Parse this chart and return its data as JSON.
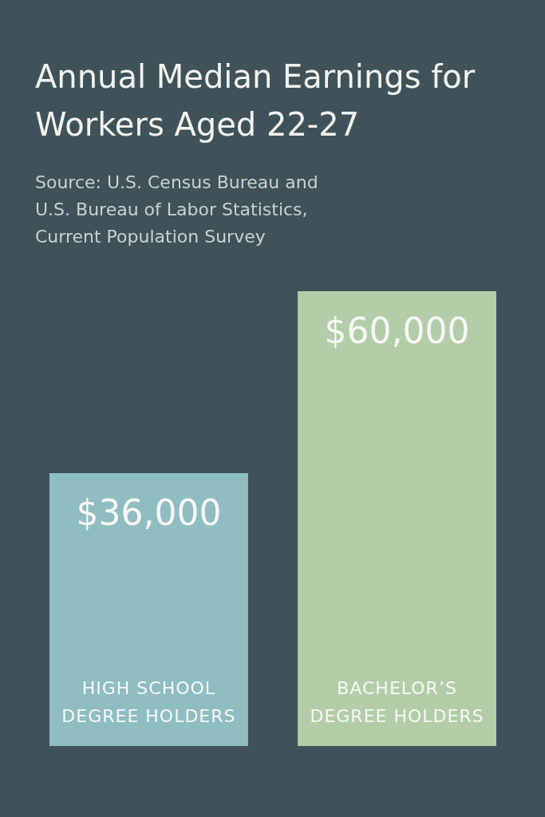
{
  "chart_data": {
    "type": "bar",
    "title": "Annual Median Earnings for Workers Aged 22-27",
    "annotations": [
      "Source: U.S. Census Bureau and U.S. Bureau of Labor Statistics, Current Population Survey"
    ],
    "categories": [
      "HIGH SCHOOL DEGREE HOLDERS",
      "BACHELOR’S DEGREE HOLDERS"
    ],
    "values": [
      36000,
      60000
    ],
    "colors": [
      "#8fbdc2",
      "#b3cda9"
    ],
    "value_labels": [
      "$36,000",
      "$60,000"
    ]
  }
}
